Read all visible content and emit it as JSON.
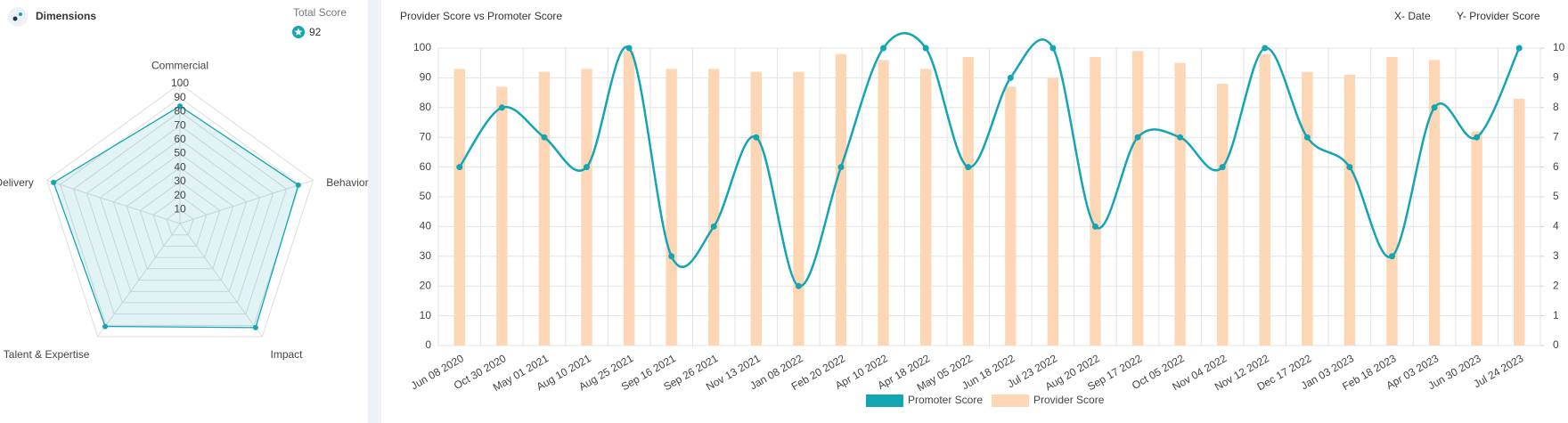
{
  "panel": {
    "title": "Dimensions",
    "total_label": "Total Score",
    "total_value": 92
  },
  "chart_data": [
    {
      "type": "radar",
      "categories": [
        "Commercial",
        "Behavior",
        "Impact",
        "Talent & Expertise",
        "Delivery"
      ],
      "values": [
        84,
        89,
        92,
        91,
        95
      ],
      "color": "#14a5b5",
      "ylim": [
        0,
        100
      ],
      "yticks": [
        10,
        20,
        30,
        40,
        50,
        60,
        70,
        80,
        90,
        100
      ],
      "grid": true
    },
    {
      "type": "combo",
      "title": "Provider Score vs Promoter Score",
      "xlabel": "X- Date",
      "ylabel": "Y- Provider Score",
      "categories": [
        "Jun 08 2020",
        "Oct 30 2020",
        "May 01 2021",
        "Aug 10 2021",
        "Aug 25 2021",
        "Sep 16 2021",
        "Sep 26 2021",
        "Nov 13 2021",
        "Jan 08 2022",
        "Feb 20 2022",
        "Apr 10 2022",
        "Apr 18 2022",
        "May 05 2022",
        "Jun 18 2022",
        "Jul 23 2022",
        "Aug 20 2022",
        "Sep 17 2022",
        "Oct 05 2022",
        "Nov 04 2022",
        "Nov 12 2022",
        "Dec 17 2022",
        "Jan 03 2023",
        "Feb 18 2023",
        "Apr 03 2023",
        "Jun 30 2023",
        "Jul 24 2023"
      ],
      "series": [
        {
          "name": "Promoter Score",
          "type": "line",
          "color": "#14a5b5",
          "values": [
            60,
            80,
            70,
            60,
            100,
            30,
            40,
            70,
            20,
            60,
            100,
            100,
            60,
            90,
            100,
            40,
            70,
            70,
            60,
            100,
            70,
            60,
            30,
            80,
            70,
            100
          ]
        },
        {
          "name": "Provider Score",
          "type": "bar",
          "axis": "y2",
          "color": "#fdd7b5",
          "values": [
            9.3,
            8.7,
            9.2,
            9.3,
            9.9,
            9.3,
            9.3,
            9.2,
            9.2,
            9.8,
            9.6,
            9.3,
            9.7,
            8.7,
            9.0,
            9.7,
            9.9,
            9.5,
            8.8,
            9.8,
            9.2,
            9.1,
            9.7,
            9.6,
            7.2,
            8.3
          ]
        }
      ],
      "ylim": [
        0,
        100
      ],
      "yticks": [
        0,
        10,
        20,
        30,
        40,
        50,
        60,
        70,
        80,
        90,
        100
      ],
      "y2lim": [
        0,
        10
      ],
      "y2ticks": [
        0,
        1,
        2,
        3,
        4,
        5,
        6,
        7,
        8,
        9,
        10
      ],
      "grid": true,
      "legend": "bottom"
    }
  ]
}
